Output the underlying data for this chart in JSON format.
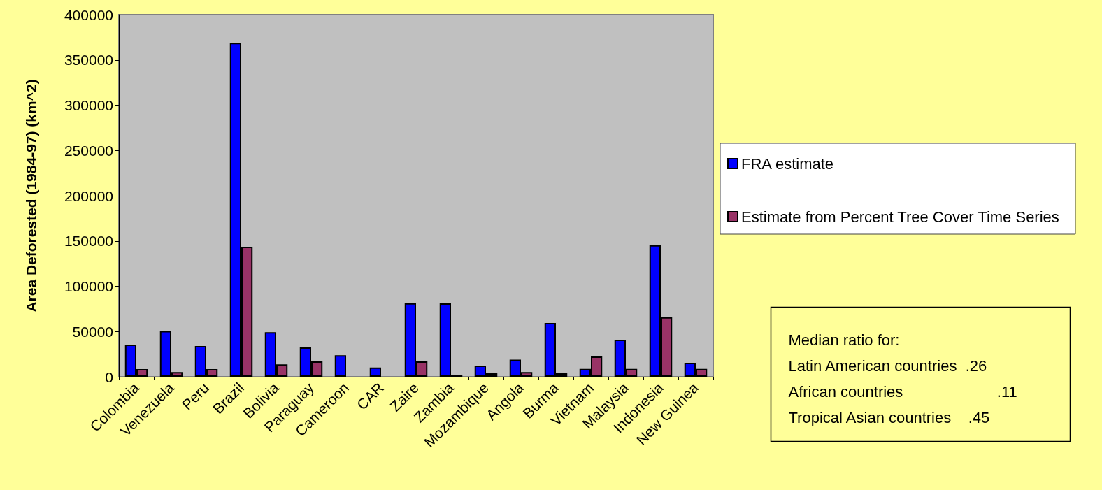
{
  "chart_data": {
    "type": "bar",
    "ylabel": "Area Deforested (1984-97) (km^2)",
    "categories": [
      "Colombia",
      "Venezuela",
      "Peru",
      "Brazil",
      "Bolivia",
      "Paraguay",
      "Cameroon",
      "CAR",
      "Zaire",
      "Zambia",
      "Mozambique",
      "Angola",
      "Burma",
      "Vietnam",
      "Malaysia",
      "Indonesia",
      "New Guinea"
    ],
    "series": [
      {
        "name": "FRA estimate",
        "color": "#0000ff",
        "values": [
          35600,
          50500,
          34000,
          369000,
          49200,
          32500,
          23800,
          10200,
          81300,
          81000,
          12300,
          19000,
          59500,
          8700,
          41000,
          145300,
          15400
        ]
      },
      {
        "name": "Estimate from Percent Tree Cover Time Series",
        "color": "#993366",
        "values": [
          8500,
          5300,
          8500,
          143600,
          13800,
          16900,
          null,
          null,
          16900,
          2000,
          3800,
          5300,
          3800,
          22300,
          8700,
          65900,
          8700
        ]
      }
    ],
    "ylim": [
      0,
      400000
    ],
    "yticks": [
      0,
      50000,
      100000,
      150000,
      200000,
      250000,
      300000,
      350000,
      400000
    ],
    "grid": false,
    "legend": "right",
    "annotations": [
      "Median ratio for:",
      "Latin American countries  .26",
      "African countries                      .11",
      "Tropical Asian countries    .45"
    ]
  }
}
